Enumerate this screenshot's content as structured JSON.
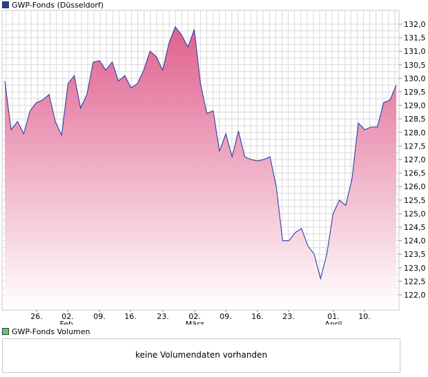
{
  "price_legend": {
    "label": "GWP-Fonds (Düsseldorf)",
    "color": "#1f3f99"
  },
  "volume_legend": {
    "label": "GWP-Fonds Volumen",
    "color": "#5fcf5f"
  },
  "volume_panel": {
    "message": "keine Volumendaten vorhanden"
  },
  "colors": {
    "line": "#2a3fa8",
    "fill_top": "#e0608e",
    "fill_bottom": "#ffffff",
    "grid": "#d9d9d9",
    "frame": "#c8c8c8"
  },
  "chart_data": {
    "type": "area",
    "title": "",
    "xlabel": "",
    "ylabel": "",
    "ylim": [
      121.8,
      132.3
    ],
    "yticks": [
      "122,0",
      "122,5",
      "123,0",
      "123,5",
      "124,0",
      "124,5",
      "125,0",
      "125,5",
      "126,0",
      "126,5",
      "127,0",
      "127,5",
      "128,0",
      "128,5",
      "129,0",
      "129,5",
      "130,0",
      "130,5",
      "131,0",
      "131,5",
      "132,0"
    ],
    "xticks": [
      {
        "label": "26.",
        "sub": ""
      },
      {
        "label": "02.",
        "sub": "Feb."
      },
      {
        "label": "09.",
        "sub": ""
      },
      {
        "label": "16.",
        "sub": ""
      },
      {
        "label": "23.",
        "sub": ""
      },
      {
        "label": "02.",
        "sub": "März"
      },
      {
        "label": "09.",
        "sub": ""
      },
      {
        "label": "16.",
        "sub": ""
      },
      {
        "label": "23.",
        "sub": ""
      },
      {
        "label": "01.",
        "sub": "April"
      },
      {
        "label": "10.",
        "sub": ""
      }
    ],
    "grid": true,
    "series": [
      {
        "values": [
          129.9,
          128.1,
          128.4,
          127.95,
          128.8,
          129.1,
          129.2,
          129.4,
          128.4,
          127.9,
          129.8,
          130.1,
          128.9,
          129.4,
          130.6,
          130.65,
          130.3,
          130.6,
          129.9,
          130.1,
          129.65,
          129.8,
          130.3,
          131.0,
          130.8,
          130.3,
          131.3,
          131.9,
          131.6,
          131.15,
          131.8,
          129.8,
          128.7,
          128.8,
          127.3,
          127.95,
          127.1,
          128.05,
          127.1,
          127.0,
          126.95,
          127.0,
          127.1,
          126.0,
          124.0,
          124.0,
          124.3,
          124.45,
          123.8,
          123.5,
          122.6,
          123.5,
          125.0,
          125.5,
          125.3,
          126.3,
          128.35,
          128.1,
          128.2,
          128.2,
          129.1,
          129.2,
          129.75
        ]
      }
    ]
  }
}
